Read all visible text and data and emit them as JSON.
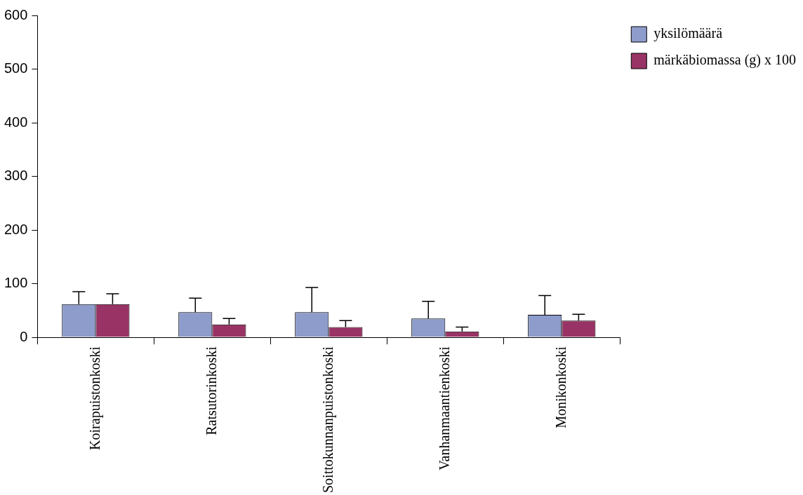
{
  "chart_data": {
    "type": "bar",
    "categories": [
      "Koirapuistonkoski",
      "Ratsutorinkoski",
      "Soittokunnanpuistonkoski",
      "Vanhanmaantienkoski",
      "Monikonkoski"
    ],
    "series": [
      {
        "name": "yksilömäärä",
        "color": "#8e9ccb",
        "values": [
          62,
          47,
          47,
          35,
          42
        ],
        "errors": [
          [
            62,
            85
          ],
          [
            47,
            73
          ],
          [
            47,
            93
          ],
          [
            35,
            67
          ],
          [
            42,
            78
          ]
        ]
      },
      {
        "name": "märkäbiomassa (g) x 100",
        "color": "#993366",
        "values": [
          62,
          24,
          19,
          11,
          31
        ],
        "errors": [
          [
            62,
            81
          ],
          [
            24,
            35
          ],
          [
            19,
            31
          ],
          [
            11,
            19
          ],
          [
            31,
            43
          ]
        ]
      }
    ],
    "ylim": [
      0,
      600
    ],
    "yticks": [
      0,
      100,
      200,
      300,
      400,
      500,
      600
    ],
    "grid": false,
    "legend": "right"
  }
}
